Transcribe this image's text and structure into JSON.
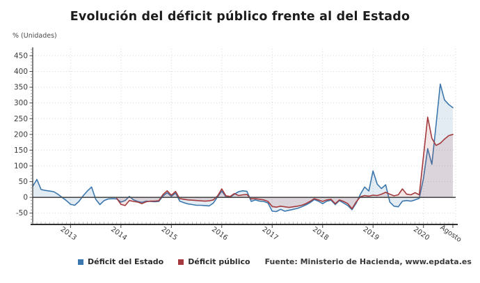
{
  "title": "Evolución del déficit público frente al del Estado",
  "y_axis_unit": "% (Unidades)",
  "legend": {
    "series1_label": "Déficit del Estado",
    "series2_label": "Déficit público",
    "source": "Fuente: Ministerio de Hacienda, www.epdata.es"
  },
  "colors": {
    "estado_line": "#3b77ad",
    "publico_line": "#a43a3d",
    "estado_fill": "rgba(61,119,173,0.14)",
    "publico_fill": "rgba(164,58,61,0.13)",
    "grid": "#d6d6d6",
    "axis": "#3a3a3a",
    "zero_line": "#4d4d4d",
    "tick_text": "#3a3a3a"
  },
  "chart_data": {
    "type": "line",
    "title": "Evolución del déficit público frente al del Estado",
    "xlabel": "",
    "ylabel": "% (Unidades)",
    "x_unit": "month",
    "x_range": [
      "2012-04",
      "2020-08"
    ],
    "n_points": 101,
    "ylim": [
      -86,
      472
    ],
    "yticks": [
      -50,
      0,
      50,
      100,
      150,
      200,
      250,
      300,
      350,
      400,
      450
    ],
    "grid": true,
    "legend_position": "bottom",
    "xticks": [
      {
        "label": "2013",
        "index": 9
      },
      {
        "label": "2014",
        "index": 21
      },
      {
        "label": "2015",
        "index": 33
      },
      {
        "label": "2016",
        "index": 45
      },
      {
        "label": "2017",
        "index": 57
      },
      {
        "label": "2018",
        "index": 69
      },
      {
        "label": "2019",
        "index": 81
      },
      {
        "label": "2020",
        "index": 93
      },
      {
        "label": "Agosto",
        "index": 100
      }
    ],
    "series": [
      {
        "name": "Déficit del Estado",
        "color": "#3b77ad",
        "values": [
          35,
          57,
          25,
          22,
          20,
          18,
          10,
          0,
          -10,
          -22,
          -25,
          -13,
          5,
          20,
          33,
          -6,
          -23,
          -10,
          -5,
          -4,
          -5,
          -15,
          -10,
          3,
          -8,
          -13,
          -16,
          -12,
          -13,
          -14,
          -13,
          4,
          15,
          3,
          14,
          -12,
          -17,
          -21,
          -23,
          -25,
          -25,
          -26,
          -27,
          -18,
          2,
          20,
          2,
          1,
          10,
          18,
          21,
          19,
          -13,
          -8,
          -12,
          -13,
          -18,
          -44,
          -45,
          -38,
          -44,
          -41,
          -38,
          -35,
          -30,
          -24,
          -17,
          -7,
          -12,
          -20,
          -12,
          -9,
          -23,
          -10,
          -18,
          -26,
          -39,
          -18,
          10,
          33,
          20,
          84,
          42,
          28,
          40,
          -15,
          -28,
          -30,
          -12,
          -10,
          -12,
          -8,
          -3,
          60,
          155,
          105,
          230,
          360,
          310,
          295,
          285
        ]
      },
      {
        "name": "Déficit público",
        "color": "#a43a3d",
        "values": [
          null,
          null,
          null,
          null,
          null,
          null,
          null,
          null,
          null,
          null,
          null,
          null,
          null,
          null,
          null,
          null,
          null,
          null,
          null,
          null,
          -3,
          -22,
          -26,
          -10,
          -13,
          -15,
          -20,
          -14,
          -12,
          -12,
          -11,
          9,
          21,
          7,
          19,
          -4,
          -6,
          -8,
          -9,
          -10,
          -11,
          -12,
          -11,
          -8,
          5,
          27,
          5,
          3,
          12,
          6,
          8,
          9,
          -5,
          -4,
          -6,
          -8,
          -13,
          -29,
          -31,
          -28,
          -30,
          -32,
          -30,
          -28,
          -25,
          -20,
          -13,
          -4,
          -8,
          -13,
          -8,
          -6,
          -20,
          -8,
          -13,
          -20,
          -36,
          -14,
          2,
          6,
          4,
          7,
          6,
          10,
          16,
          10,
          5,
          8,
          27,
          10,
          8,
          15,
          8,
          130,
          255,
          188,
          165,
          172,
          185,
          196,
          200
        ]
      }
    ]
  }
}
